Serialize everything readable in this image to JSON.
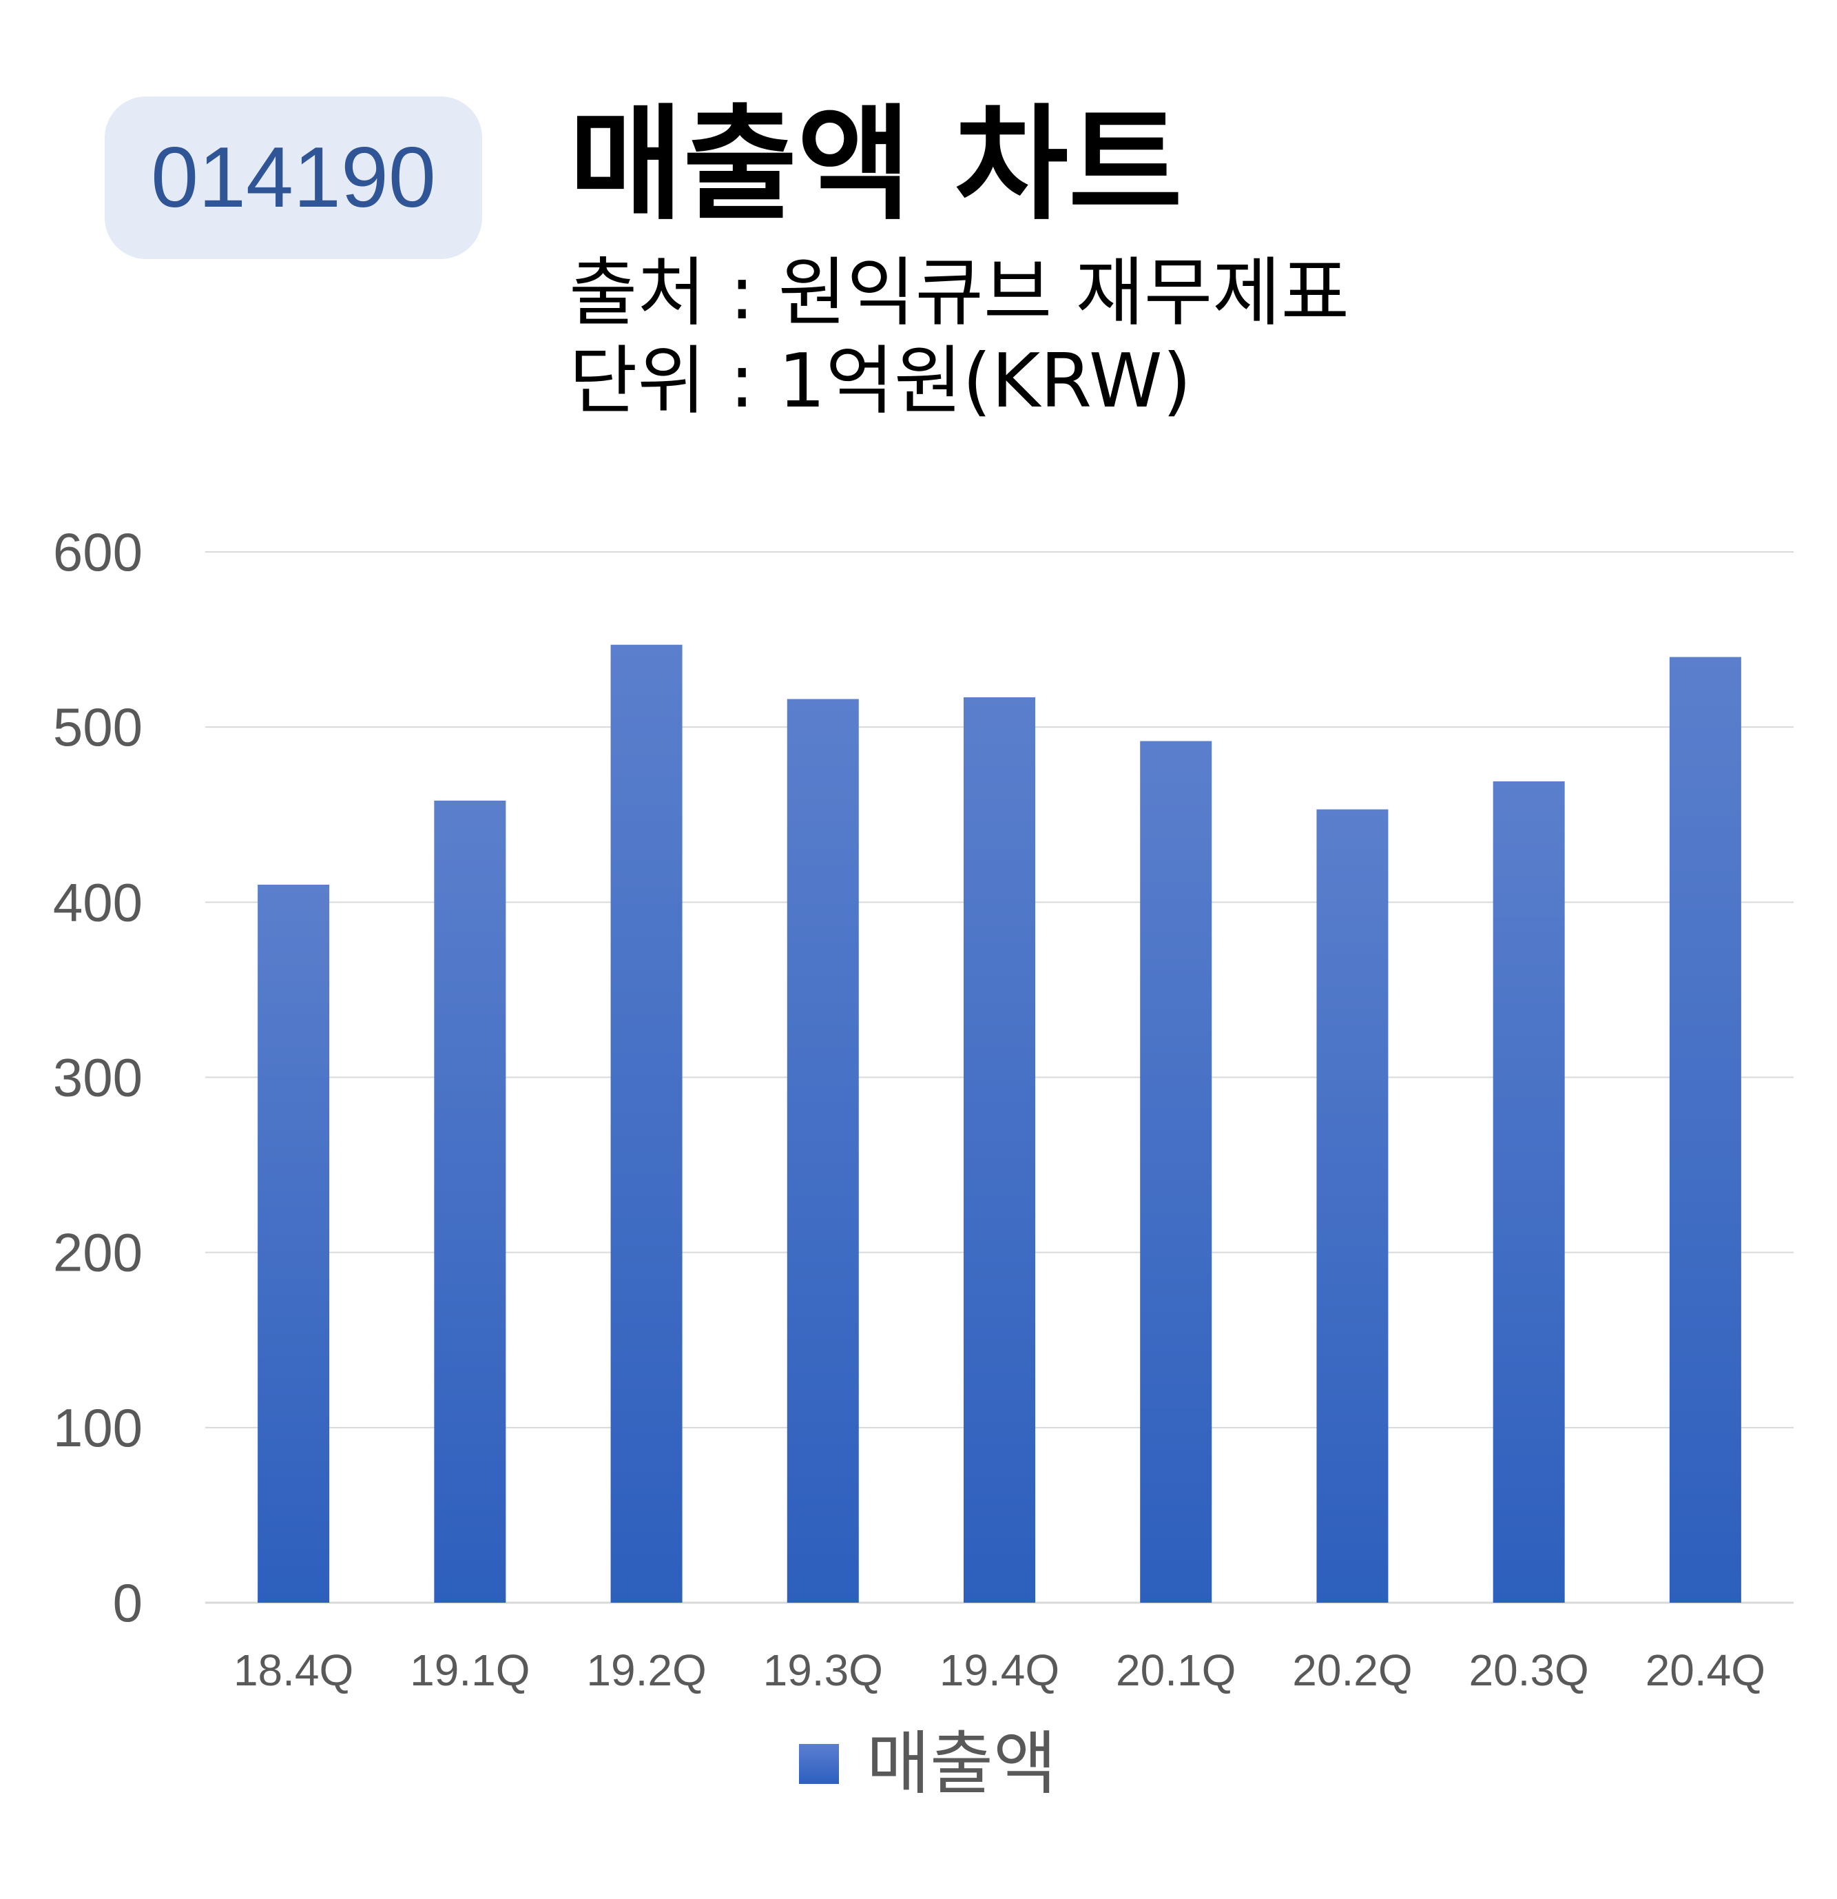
{
  "header": {
    "stock_code": "014190",
    "title": "매출액 차트",
    "source": "출처 : 원익큐브 재무제표",
    "unit": "단위 : 1억원(KRW)"
  },
  "legend": {
    "label": "매출액",
    "color": "#4472c4"
  },
  "chart_data": {
    "type": "bar",
    "categories": [
      "18.4Q",
      "19.1Q",
      "19.2Q",
      "19.3Q",
      "19.4Q",
      "20.1Q",
      "20.2Q",
      "20.3Q",
      "20.4Q"
    ],
    "series": [
      {
        "name": "매출액",
        "values": [
          410,
          458,
          547,
          516,
          517,
          492,
          453,
          469,
          540
        ]
      }
    ],
    "title": "매출액 차트",
    "xlabel": "",
    "ylabel": "",
    "ylim": [
      0,
      600
    ],
    "yticks": [
      0,
      100,
      200,
      300,
      400,
      500,
      600
    ],
    "grid": true,
    "legend_position": "bottom",
    "bar_color_top": "#5b7fcc",
    "bar_color_bottom": "#2d5fbd",
    "grid_color": "#d9d9d9"
  }
}
